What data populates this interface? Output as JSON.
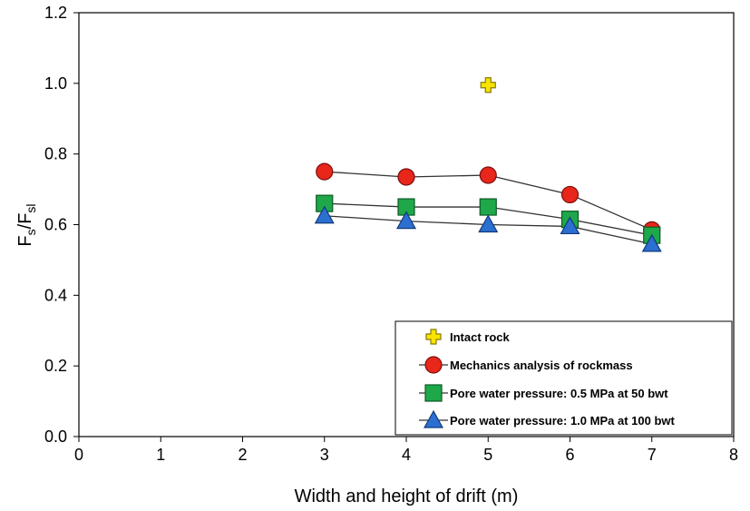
{
  "chart_data": {
    "type": "line",
    "xlabel": "Width and height of drift (m)",
    "ylabel_main": "F",
    "ylabel_sub1": "s",
    "ylabel_sep": "/F",
    "ylabel_sub2": "sl",
    "xlim": [
      0,
      8
    ],
    "ylim": [
      0,
      1.2
    ],
    "xticks": [
      0,
      1,
      2,
      3,
      4,
      5,
      6,
      7,
      8
    ],
    "yticks": [
      0.0,
      0.2,
      0.4,
      0.6,
      0.8,
      1.0,
      1.2
    ],
    "ytick_labels": [
      "0.0",
      "0.2",
      "0.4",
      "0.6",
      "0.8",
      "1.0",
      "1.2"
    ],
    "grid": false,
    "legend_position": "bottom-right",
    "series": [
      {
        "name": "Intact rock",
        "marker": "cross",
        "color": "#f7e400",
        "edge": "#8a7a00",
        "connect": false,
        "x": [
          5
        ],
        "y": [
          0.995
        ]
      },
      {
        "name": "Mechanics analysis of rockmass",
        "marker": "circle",
        "color": "#e8261a",
        "edge": "#7a1010",
        "connect": true,
        "x": [
          3,
          4,
          5,
          6,
          7
        ],
        "y": [
          0.75,
          0.735,
          0.74,
          0.685,
          0.585
        ]
      },
      {
        "name": "Pore water pressure: 0.5 MPa at 50 bwt",
        "marker": "square",
        "color": "#1ea84a",
        "edge": "#0c5a24",
        "connect": true,
        "x": [
          3,
          4,
          5,
          6,
          7
        ],
        "y": [
          0.66,
          0.65,
          0.65,
          0.615,
          0.57
        ]
      },
      {
        "name": "Pore water pressure: 1.0 MPa at 100 bwt",
        "marker": "triangle",
        "color": "#2b6fd0",
        "edge": "#123a7a",
        "connect": true,
        "x": [
          3,
          4,
          5,
          6,
          7
        ],
        "y": [
          0.625,
          0.61,
          0.6,
          0.595,
          0.545
        ]
      }
    ]
  }
}
